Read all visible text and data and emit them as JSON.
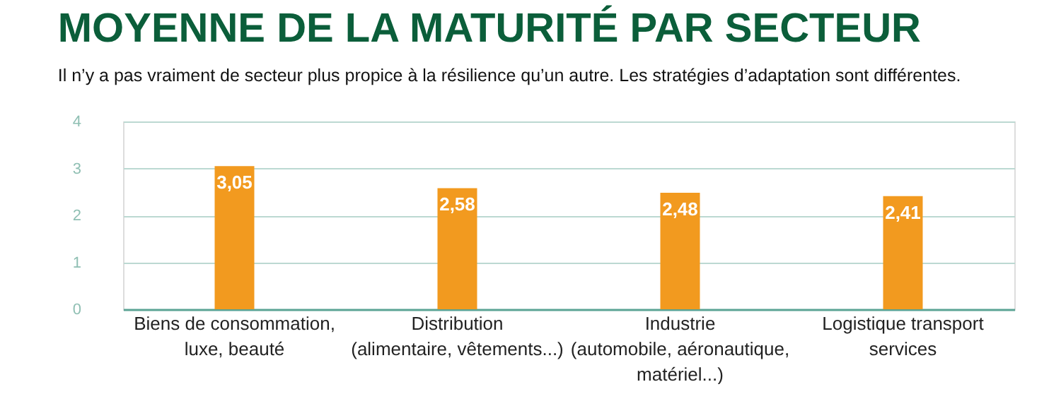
{
  "chart_data": {
    "type": "bar",
    "title": "MOYENNE DE LA MATURITÉ PAR SECTEUR",
    "subtitle": "Il n’y a pas vraiment de secteur plus propice à la résilience qu’un autre. Les stratégies d’adaptation sont différentes.",
    "categories": [
      "Biens de consommation,\nluxe, beauté",
      "Distribution\n(alimentaire, vêtements...)",
      "Industrie\n(automobile, aéronautique,\nmatériel...)",
      "Logistique transport\nservices"
    ],
    "values": [
      3.05,
      2.58,
      2.48,
      2.41
    ],
    "value_labels": [
      "3,05",
      "2,58",
      "2,48",
      "2,41"
    ],
    "color": "#f29a1f",
    "ylim": [
      0,
      4
    ],
    "yticks": [
      0,
      1,
      2,
      3,
      4
    ],
    "grid": "y"
  }
}
